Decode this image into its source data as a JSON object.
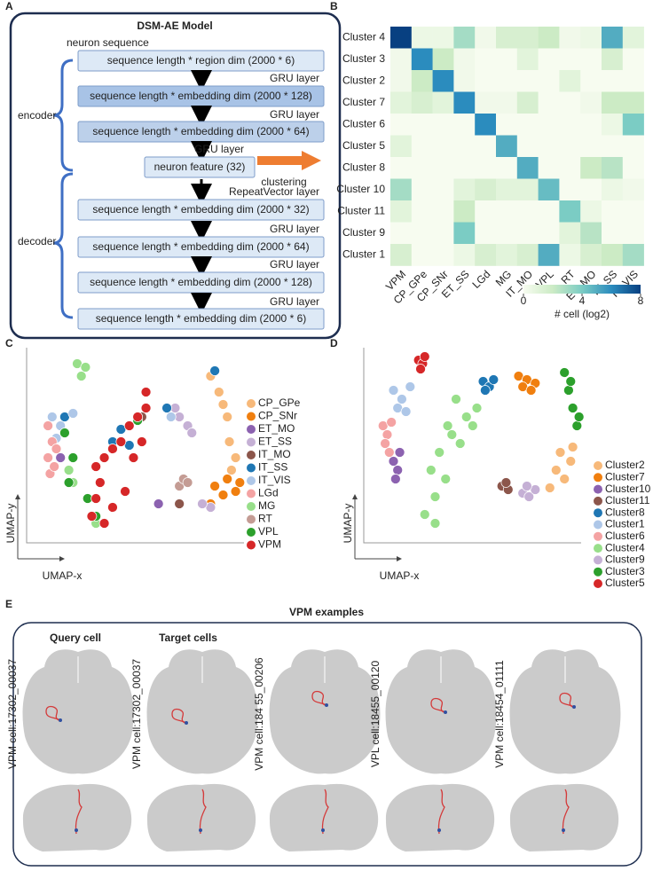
{
  "panel_labels": [
    "A",
    "B",
    "C",
    "D",
    "E"
  ],
  "diagram": {
    "title": "DSM-AE Model",
    "input_label": "neuron sequence",
    "boxes": [
      "sequence length * region dim (2000 * 6)",
      "sequence length * embedding dim (2000 * 128)",
      "sequence length * embedding dim (2000 * 64)",
      "neuron feature (32)",
      "sequence length * embedding dim (2000 * 32)",
      "sequence length * embedding dim (2000 * 64)",
      "sequence length * embedding dim (2000 * 128)",
      "sequence length * embedding dim (2000 * 6)"
    ],
    "layers": [
      "GRU layer",
      "GRU layer",
      "GRU layer",
      "RepeatVector layer",
      "GRU layer",
      "GRU layer",
      "GRU layer"
    ],
    "clustering": "clustering",
    "encoder": "encoder",
    "decoder": "decoder"
  },
  "chart_data": [
    {
      "type": "heatmap",
      "x_categories": [
        "VPM",
        "CP_GPe",
        "CP_SNr",
        "ET_SS",
        "LGd",
        "MG",
        "IT_MO",
        "VPL",
        "RT",
        "ET_MO",
        "IT_SS",
        "IT_VIS"
      ],
      "y_categories": [
        "Cluster 4",
        "Cluster 3",
        "Cluster 2",
        "Cluster 7",
        "Cluster 6",
        "Cluster 5",
        "Cluster 8",
        "Cluster 10",
        "Cluster 11",
        "Cluster 9",
        "Cluster 1"
      ],
      "values": [
        [
          8,
          0.5,
          0.5,
          3,
          0.3,
          1.5,
          1.5,
          2,
          0.3,
          0.5,
          5,
          1
        ],
        [
          0.3,
          6,
          2,
          0.3,
          0,
          0,
          1,
          0,
          0,
          0,
          1.5,
          0
        ],
        [
          0.3,
          2,
          6,
          0.3,
          0,
          0,
          0,
          0,
          1,
          0,
          0,
          0
        ],
        [
          1,
          1.5,
          1,
          6,
          0.3,
          0.3,
          1.5,
          0,
          0,
          0.3,
          2,
          2
        ],
        [
          0,
          0,
          0,
          0,
          6,
          0,
          0,
          0,
          0,
          0,
          0.5,
          4
        ],
        [
          1,
          0,
          0,
          0,
          0,
          5,
          0,
          0,
          0,
          0,
          0,
          0
        ],
        [
          0,
          0,
          0,
          0,
          0,
          0,
          5,
          0,
          0,
          2,
          2.5,
          0
        ],
        [
          3,
          0,
          0,
          1,
          1.5,
          1,
          1,
          4.5,
          0,
          0,
          0.5,
          0.3
        ],
        [
          1,
          0,
          0,
          2,
          0,
          0,
          0,
          0,
          4,
          0.5,
          0,
          0
        ],
        [
          0,
          0,
          0,
          4,
          0,
          0,
          0,
          0,
          1,
          2.5,
          0,
          0
        ],
        [
          1.5,
          0,
          0,
          0.5,
          1.5,
          1,
          1.5,
          5,
          0.5,
          1.5,
          2,
          3
        ]
      ],
      "zlim": [
        0,
        8
      ],
      "zticks": [
        0,
        4,
        8
      ],
      "colorbar_label": "# cell (log2)",
      "colormap": [
        "#f7fcf0",
        "#ccebc5",
        "#7bccc4",
        "#2b8cbe",
        "#084081"
      ]
    },
    {
      "type": "scatter",
      "xlabel": "UMAP-x",
      "ylabel": "UMAP-y",
      "xlim": [
        0,
        100
      ],
      "ylim": [
        0,
        100
      ],
      "series": [
        {
          "name": "CP_GPe",
          "color": "#f7b97a",
          "x": [
            84,
            88,
            92,
            93,
            96,
            90,
            94
          ],
          "y": [
            88,
            79,
            65,
            51,
            42,
            72,
            35
          ]
        },
        {
          "name": "CP_SNr",
          "color": "#f07f0f",
          "x": [
            86,
            92,
            98,
            90,
            96,
            84
          ],
          "y": [
            26,
            30,
            28,
            21,
            23,
            16
          ]
        },
        {
          "name": "ET_MO",
          "color": "#8c62b0",
          "x": [
            12,
            59
          ],
          "y": [
            42,
            16
          ]
        },
        {
          "name": "ET_SS",
          "color": "#c5b0d5",
          "x": [
            69,
            73,
            84,
            80,
            75,
            67
          ],
          "y": [
            65,
            60,
            14,
            16,
            56,
            70
          ]
        },
        {
          "name": "IT_MO",
          "color": "#8c564b",
          "x": [
            49,
            51,
            69
          ],
          "y": [
            63,
            65,
            16
          ]
        },
        {
          "name": "IT_SS",
          "color": "#1f77b4",
          "x": [
            37,
            45,
            63,
            86,
            14,
            41
          ],
          "y": [
            51,
            49,
            70,
            91,
            65,
            58
          ]
        },
        {
          "name": "IT_VIS",
          "color": "#aec7e8",
          "x": [
            8,
            12,
            18,
            10,
            65
          ],
          "y": [
            65,
            60,
            67,
            53,
            65
          ]
        },
        {
          "name": "LGd",
          "color": "#f4a3a3",
          "x": [
            6,
            8,
            6,
            10,
            7,
            9
          ],
          "y": [
            60,
            51,
            42,
            47,
            33,
            37
          ]
        },
        {
          "name": "MG",
          "color": "#98df8a",
          "x": [
            20,
            22,
            24,
            18,
            29,
            16
          ],
          "y": [
            95,
            88,
            93,
            28,
            5,
            35
          ]
        },
        {
          "name": "RT",
          "color": "#c49c94",
          "x": [
            69,
            71,
            73
          ],
          "y": [
            26,
            30,
            28
          ]
        },
        {
          "name": "VPL",
          "color": "#2ca02c",
          "x": [
            14,
            16,
            18,
            25,
            29,
            49
          ],
          "y": [
            56,
            28,
            42,
            19,
            9,
            63
          ]
        },
        {
          "name": "VPM",
          "color": "#d62728",
          "x": [
            27,
            29,
            31,
            29,
            33,
            37,
            41,
            45,
            49,
            53,
            47,
            43,
            53,
            51,
            37,
            33
          ],
          "y": [
            9,
            19,
            28,
            37,
            42,
            47,
            51,
            60,
            65,
            70,
            42,
            23,
            79,
            51,
            14,
            5
          ]
        }
      ]
    },
    {
      "type": "scatter",
      "xlabel": "UMAP-x",
      "ylabel": "UMAP-y",
      "xlim": [
        0,
        100
      ],
      "ylim": [
        0,
        100
      ],
      "series": [
        {
          "name": "Cluster2",
          "color": "#f7b97a",
          "x": [
            88,
            92,
            95,
            85,
            90,
            96
          ],
          "y": [
            35,
            30,
            40,
            25,
            45,
            48
          ]
        },
        {
          "name": "Cluster7",
          "color": "#f07f0f",
          "x": [
            70,
            74,
            78,
            72,
            76
          ],
          "y": [
            88,
            86,
            84,
            82,
            80
          ]
        },
        {
          "name": "Cluster10",
          "color": "#8c62b0",
          "x": [
            10,
            12,
            11,
            13
          ],
          "y": [
            40,
            35,
            30,
            45
          ]
        },
        {
          "name": "Cluster11",
          "color": "#8c564b",
          "x": [
            62,
            65,
            64
          ],
          "y": [
            26,
            24,
            28
          ]
        },
        {
          "name": "Cluster8",
          "color": "#1f77b4",
          "x": [
            53,
            56,
            54,
            58
          ],
          "y": [
            85,
            82,
            80,
            86
          ]
        },
        {
          "name": "Cluster1",
          "color": "#aec7e8",
          "x": [
            10,
            14,
            18,
            12,
            16
          ],
          "y": [
            80,
            75,
            82,
            70,
            68
          ]
        },
        {
          "name": "Cluster6",
          "color": "#f4a3a3",
          "x": [
            5,
            7,
            6,
            9,
            8
          ],
          "y": [
            60,
            55,
            50,
            62,
            45
          ]
        },
        {
          "name": "Cluster4",
          "color": "#98df8a",
          "x": [
            25,
            30,
            28,
            32,
            38,
            45,
            50,
            42,
            35,
            30,
            48,
            40,
            36
          ],
          "y": [
            10,
            20,
            35,
            45,
            55,
            65,
            70,
            50,
            30,
            5,
            60,
            75,
            60
          ]
        },
        {
          "name": "Cluster9",
          "color": "#c5b0d5",
          "x": [
            72,
            75,
            78,
            74
          ],
          "y": [
            22,
            20,
            24,
            26
          ]
        },
        {
          "name": "Cluster3",
          "color": "#2ca02c",
          "x": [
            92,
            94,
            96,
            98,
            95,
            99
          ],
          "y": [
            90,
            80,
            70,
            60,
            85,
            65
          ]
        },
        {
          "name": "Cluster5",
          "color": "#d62728",
          "x": [
            22,
            24,
            23,
            25
          ],
          "y": [
            97,
            95,
            92,
            99
          ]
        }
      ]
    }
  ],
  "examples": {
    "title": "VPM examples",
    "query_label": "Query cell",
    "target_label": "Target cells",
    "cells": [
      "VPM  cell:17302_00037",
      "VPM  cell:17302_00037",
      "VPM  cell:184 55_00206",
      "VPL  cell:18455_00120",
      "VPM  cell:18454_01111"
    ]
  }
}
